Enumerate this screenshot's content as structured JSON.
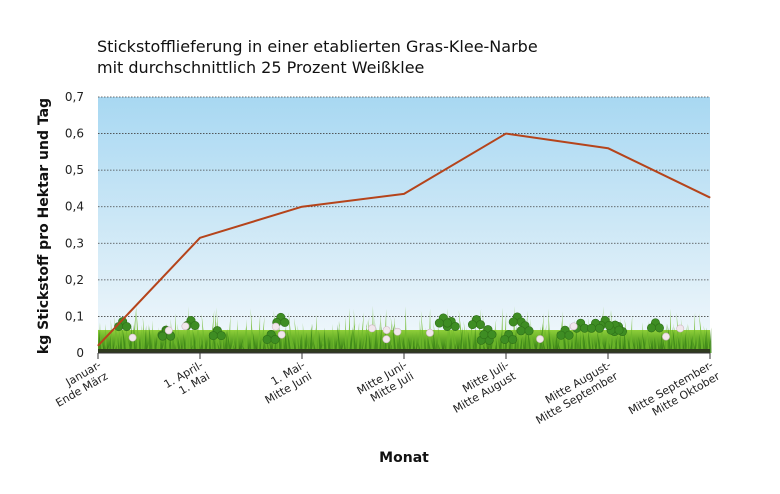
{
  "chart_data": {
    "type": "line",
    "title_lines": [
      "Stickstofflieferung in einer etablierten Gras-Klee-Narbe",
      "mit durchschnittlich 25 Prozent Weißklee"
    ],
    "xlabel": "Monat",
    "ylabel": "kg Stickstoff pro Hektar und Tag",
    "categories": [
      [
        "Januar-",
        "Ende März"
      ],
      [
        "1. April-",
        "1. Mai"
      ],
      [
        "1. Mai-",
        "Mitte Juni"
      ],
      [
        "Mitte Juni-",
        "Mitte Juli"
      ],
      [
        "Mitte Juli-",
        "Mitte August"
      ],
      [
        "Mitte August-",
        "Mitte September"
      ],
      [
        "Mitte September-",
        "Mitte Oktober"
      ]
    ],
    "series": [
      {
        "values": [
          0.02,
          0.315,
          0.4,
          0.435,
          0.6,
          0.56,
          0.425
        ],
        "color": "#b5441b"
      }
    ],
    "ylim": [
      0,
      0.7
    ],
    "yticks": [
      "0",
      "0,1",
      "0,2",
      "0,3",
      "0,4",
      "0,5",
      "0,6",
      "0,7"
    ],
    "grid": true,
    "background": "sky-gradient-with-grass"
  }
}
